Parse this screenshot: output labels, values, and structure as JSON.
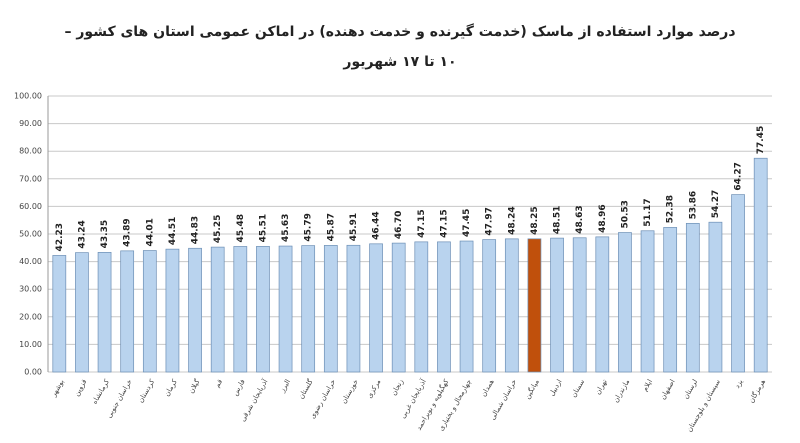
{
  "chart_data": {
    "type": "bar",
    "title": "درصد موارد استفاده از ماسک (خدمت گیرنده و خدمت دهنده) در اماکن عمومی استان های کشور –",
    "subtitle": "۱۰ تا ۱۷ شهریور",
    "categories": [
      "بوشهر",
      "قزوین",
      "کرمانشاه",
      "خراسان جنوبی",
      "کردستان",
      "کرمان",
      "گیلان",
      "قم",
      "فارس",
      "آذربایجان شرقی",
      "البرز",
      "گلستان",
      "خراسان رضوی",
      "خوزستان",
      "مرکزی",
      "زنجان",
      "آذربایجان غربی",
      "کهگیلویه و بویراحمد",
      "چهارمحال و بختیاری",
      "همدان",
      "خراسان شمالی",
      "میانگین",
      "اردبیل",
      "سمنان",
      "تهران",
      "مازندران",
      "ایلام",
      "اصفهان",
      "لرستان",
      "سیستان و بلوچستان",
      "یزد",
      "هرمزگان"
    ],
    "values": [
      42.23,
      43.24,
      43.35,
      43.89,
      44.01,
      44.51,
      44.83,
      45.25,
      45.48,
      45.51,
      45.63,
      45.79,
      45.87,
      45.91,
      46.44,
      46.7,
      47.15,
      47.15,
      47.45,
      47.97,
      48.24,
      48.25,
      48.51,
      48.63,
      48.96,
      50.53,
      51.17,
      52.38,
      53.86,
      54.27,
      64.27,
      77.45
    ],
    "value_labels": [
      "42.23",
      "43.24",
      "43.35",
      "43.89",
      "44.01",
      "44.51",
      "44.83",
      "45.25",
      "45.48",
      "45.51",
      "45.63",
      "45.79",
      "45.87",
      "45.91",
      "46.44",
      "46.70",
      "47.15",
      "47.15",
      "47.45",
      "47.97",
      "48.24",
      "48.25",
      "48.51",
      "48.63",
      "48.96",
      "50.53",
      "51.17",
      "52.38",
      "53.86",
      "54.27",
      "64.27",
      "77.45"
    ],
    "colors": [
      "#b9d3ee",
      "#b9d3ee",
      "#b9d3ee",
      "#b9d3ee",
      "#b9d3ee",
      "#b9d3ee",
      "#b9d3ee",
      "#b9d3ee",
      "#b9d3ee",
      "#b9d3ee",
      "#b9d3ee",
      "#b9d3ee",
      "#b9d3ee",
      "#b9d3ee",
      "#b9d3ee",
      "#b9d3ee",
      "#b9d3ee",
      "#b9d3ee",
      "#b9d3ee",
      "#b9d3ee",
      "#b9d3ee",
      "#c0500c",
      "#b9d3ee",
      "#b9d3ee",
      "#b9d3ee",
      "#b9d3ee",
      "#b9d3ee",
      "#b9d3ee",
      "#b9d3ee",
      "#b9d3ee",
      "#b9d3ee",
      "#b9d3ee"
    ],
    "ylim": [
      0,
      100
    ],
    "yticks": [
      {
        "value": 0,
        "label": "0.00"
      },
      {
        "value": 10,
        "label": "10.00"
      },
      {
        "value": 20,
        "label": "20.00"
      },
      {
        "value": 30,
        "label": "30.00"
      },
      {
        "value": 40,
        "label": "40.00"
      },
      {
        "value": 50,
        "label": "50.00"
      },
      {
        "value": 60,
        "label": "60.00"
      },
      {
        "value": 70,
        "label": "70.00"
      },
      {
        "value": 80,
        "label": "80.00"
      },
      {
        "value": 90,
        "label": "90.00"
      },
      {
        "value": 100,
        "label": "100.00"
      }
    ],
    "grid": true
  }
}
